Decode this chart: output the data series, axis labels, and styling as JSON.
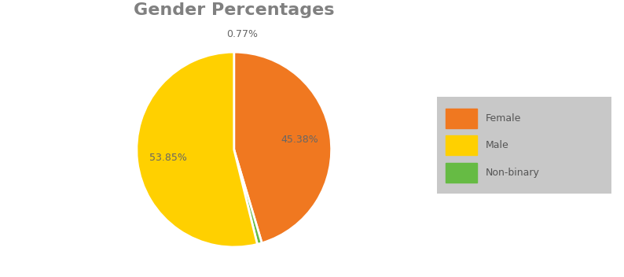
{
  "title": "Gender Percentages",
  "labels": [
    "Female",
    "Male",
    "Non-binary"
  ],
  "values": [
    45.38,
    53.85,
    0.77
  ],
  "colors": [
    "#F07820",
    "#FFD000",
    "#66BB44"
  ],
  "background_color": "#FFFFFF",
  "legend_background": "#C8C8C8",
  "title_fontsize": 16,
  "pct_fontsize": 9,
  "wedge_edgecolor": "#FFFFFF",
  "startangle": 90,
  "title_color": "#808080",
  "pct_color": "#666666"
}
